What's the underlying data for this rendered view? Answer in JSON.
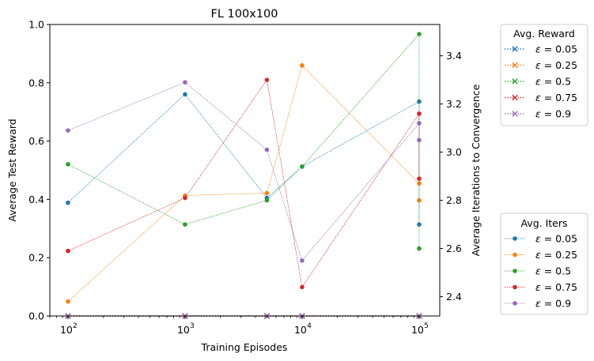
{
  "chart_data": {
    "type": "line",
    "title": "FL 100x100",
    "xlabel": "Training Episodes",
    "ylabel": "Average Test Reward",
    "y2label": "Average Iterations to Convergence",
    "xscale": "log",
    "xlim": [
      70,
      150000
    ],
    "ylim": [
      0,
      1.0
    ],
    "y2lim": [
      2.32,
      3.53
    ],
    "x": [
      100,
      1000,
      5000,
      10000,
      100000
    ],
    "x_ticks": [
      100,
      1000,
      10000,
      100000
    ],
    "x_tick_labels": [
      [
        "10",
        "2"
      ],
      [
        "10",
        "3"
      ],
      [
        "10",
        "4"
      ],
      [
        "10",
        "5"
      ]
    ],
    "y_ticks": [
      "0.0",
      "0.2",
      "0.4",
      "0.6",
      "0.8",
      "1.0"
    ],
    "y2_ticks": [
      "2.4",
      "2.6",
      "2.8",
      "3.0",
      "3.2",
      "3.4"
    ],
    "reward_legend_title": "Avg. Reward",
    "iters_legend_title": "Avg. Iters",
    "series": [
      {
        "name": "ε = 0.05",
        "label_sym": "ε",
        "label_val": " = 0.05",
        "color": "#1f77b4",
        "reward": [
          0,
          0,
          0,
          0,
          0
        ],
        "iters": [
          2.79,
          3.24,
          2.81,
          2.94,
          3.21
        ],
        "last_iters": 2.7
      },
      {
        "name": "ε = 0.25",
        "label_sym": "ε",
        "label_val": " = 0.25",
        "color": "#ff7f0e",
        "reward": [
          0,
          0,
          0,
          0,
          0
        ],
        "iters": [
          2.38,
          2.82,
          2.83,
          3.36,
          2.87
        ],
        "last_iters": 2.8
      },
      {
        "name": "ε = 0.5",
        "label_sym": "ε",
        "label_val": " = 0.5",
        "color": "#2ca02c",
        "reward": [
          0,
          0,
          0,
          0,
          0
        ],
        "iters": [
          2.95,
          2.7,
          2.8,
          2.94,
          3.49
        ],
        "last_iters": 2.6
      },
      {
        "name": "ε = 0.75",
        "label_sym": "ε",
        "label_val": " = 0.75",
        "color": "#d62728",
        "reward": [
          0,
          0,
          0,
          0,
          0
        ],
        "iters": [
          2.59,
          2.81,
          3.3,
          2.44,
          3.16
        ],
        "last_iters": 2.89
      },
      {
        "name": "ε = 0.9",
        "label_sym": "ε",
        "label_val": " = 0.9",
        "color": "#9467bd",
        "reward": [
          0,
          0,
          0,
          0,
          0
        ],
        "iters": [
          3.09,
          3.29,
          3.01,
          2.55,
          3.12
        ],
        "last_iters": 3.05
      }
    ]
  }
}
